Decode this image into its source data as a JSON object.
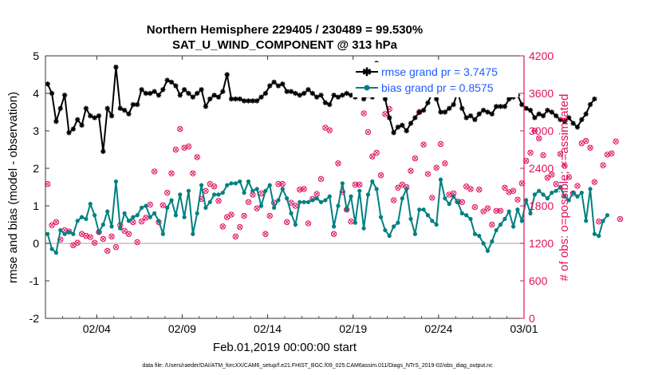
{
  "chart_data": {
    "type": "line",
    "title_line1": "Northern Hemisphere 229405 / 230489 = 99.530%",
    "title_line2": "SAT_U_WIND_COMPONENT @ 313 hPa",
    "xlabel": "Feb.01,2019 00:00:00 start",
    "ylabel_left": "rmse and bias (model - observation)",
    "ylabel_right": "# of obs: o=possible; ×=assimilated",
    "footer": "data file: /Users/raeder/DAI/ATM_forcXX/CAM6_setup/f.e21.FHIST_BGC.f09_025.CAM6assim.011/Diags_NTrS_2019-02/obs_diag_output.nc",
    "xlim": [
      1,
      29
    ],
    "ylim_left": [
      -2,
      5
    ],
    "ylim_right": [
      0,
      4200
    ],
    "x_ticks": [
      {
        "x": 4,
        "label": "02/04"
      },
      {
        "x": 9,
        "label": "02/09"
      },
      {
        "x": 14,
        "label": "02/14"
      },
      {
        "x": 19,
        "label": "02/19"
      },
      {
        "x": 24,
        "label": "02/24"
      },
      {
        "x": 29,
        "label": "03/01"
      }
    ],
    "y_ticks_left": [
      "-2",
      "-1",
      "0",
      "1",
      "2",
      "3",
      "4",
      "5"
    ],
    "y_ticks_right": [
      "0",
      "600",
      "1200",
      "1800",
      "2400",
      "3000",
      "3600",
      "4200"
    ],
    "legend": {
      "rmse": "rmse grand pr = 3.7475",
      "bias": "bias grand pr = 0.8575",
      "position": "top-right"
    },
    "colors": {
      "rmse": "#000000",
      "bias": "#008080",
      "obs": "#e0115f",
      "zero_line": "#c0a8a8"
    },
    "series": [
      {
        "name": "rmse",
        "x0": 1.125,
        "dx": 0.25,
        "values": [
          4.25,
          4.0,
          3.25,
          3.6,
          3.95,
          2.95,
          3.05,
          3.3,
          3.15,
          3.6,
          3.4,
          3.35,
          3.4,
          2.45,
          3.6,
          3.4,
          4.7,
          3.6,
          3.55,
          3.45,
          3.7,
          3.7,
          4.1,
          4.0,
          4.0,
          4.05,
          3.95,
          4.1,
          4.35,
          4.3,
          4.2,
          3.95,
          4.1,
          4.0,
          3.9,
          4.0,
          4.1,
          3.65,
          3.85,
          3.95,
          3.9,
          4.05,
          4.5,
          3.85,
          3.85,
          3.85,
          3.8,
          3.8,
          3.8,
          3.8,
          3.9,
          4.0,
          4.2,
          4.3,
          4.2,
          4.25,
          4.05,
          4.05,
          4.0,
          3.95,
          4.0,
          4.1,
          4.0,
          3.9,
          3.95,
          3.75,
          3.7,
          3.95,
          3.9,
          3.95,
          4.0,
          3.95,
          3.9,
          4.05,
          3.85,
          3.95,
          3.9,
          4.8,
          4.55,
          3.85,
          3.35,
          2.95,
          3.1,
          3.15,
          3.0,
          3.2,
          3.35,
          3.5,
          3.55,
          3.75,
          4.0,
          3.85,
          3.5,
          3.5,
          3.6,
          3.7,
          4.05,
          3.6,
          3.35,
          3.4,
          3.3,
          3.45,
          3.55,
          3.5,
          3.45,
          3.65,
          3.65,
          3.65,
          3.85,
          3.9,
          3.95,
          3.7,
          3.6,
          3.55,
          3.35,
          3.45,
          3.4,
          3.55,
          3.5,
          3.4,
          3.3,
          3.25,
          3.35,
          3.2,
          3.1,
          3.3,
          3.45,
          3.7,
          3.85
        ]
      },
      {
        "name": "bias",
        "x0": 1.125,
        "dx": 0.25,
        "values": [
          0.25,
          -0.15,
          -0.25,
          0.35,
          0.25,
          0.3,
          0.25,
          0.6,
          0.7,
          0.65,
          1.05,
          0.75,
          0.3,
          0.5,
          0.85,
          0.45,
          1.65,
          0.4,
          0.8,
          0.6,
          0.7,
          0.75,
          0.95,
          1.0,
          0.7,
          0.8,
          0.6,
          0.25,
          0.95,
          1.15,
          0.75,
          1.3,
          0.7,
          1.4,
          0.25,
          0.8,
          1.55,
          0.95,
          1.1,
          1.3,
          1.3,
          1.35,
          1.55,
          1.6,
          1.6,
          1.65,
          1.35,
          1.65,
          1.4,
          1.45,
          1.0,
          1.4,
          1.55,
          0.95,
          1.15,
          1.45,
          1.2,
          0.8,
          0.5,
          1.1,
          1.1,
          1.1,
          1.15,
          1.2,
          1.1,
          1.15,
          1.25,
          0.45,
          1.0,
          1.6,
          0.9,
          1.25,
          0.55,
          1.4,
          0.4,
          1.3,
          1.65,
          1.45,
          0.7,
          0.35,
          0.2,
          0.45,
          0.55,
          1.2,
          1.45,
          0.65,
          0.25,
          0.9,
          0.9,
          0.75,
          0.6,
          0.5,
          1.7,
          1.2,
          1.05,
          1.25,
          1.1,
          0.8,
          0.75,
          0.65,
          0.25,
          0.2,
          0.0,
          -0.2,
          0.05,
          0.35,
          0.5,
          0.65,
          0.85,
          0.45,
          0.9,
          0.6,
          1.15,
          0.8,
          1.3,
          1.4,
          1.3,
          1.2,
          1.35,
          1.4,
          1.5,
          1.25,
          1.15,
          1.35,
          1.25,
          1.35,
          0.6,
          1.45,
          0.25,
          0.2,
          0.6,
          0.75
        ]
      },
      {
        "name": "obs_possible",
        "x0": 1.125,
        "dx": 0.25,
        "values": [
          2150,
          1490,
          1540,
          1260,
          1410,
          1390,
          1170,
          1210,
          1350,
          1320,
          1300,
          1210,
          1380,
          1270,
          1080,
          1310,
          1140,
          1490,
          1400,
          1350,
          1540,
          1220,
          1550,
          1610,
          1820,
          2350,
          1540,
          1810,
          2010,
          2320,
          2700,
          3030,
          2730,
          2750,
          2320,
          2580,
          1910,
          2040,
          2150,
          2110,
          1880,
          1470,
          1620,
          1660,
          1310,
          1460,
          1640,
          1860,
          1980,
          1760,
          2000,
          1350,
          1640,
          1850,
          2150,
          2150,
          1540,
          1850,
          1800,
          2060,
          2070,
          1520,
          1910,
          1990,
          2230,
          3050,
          3010,
          1350,
          2480,
          2020,
          1740,
          1550,
          2140,
          2140,
          3280,
          2980,
          2590,
          2650,
          2290,
          3270,
          3350,
          1890,
          2090,
          2140,
          2100,
          2360,
          2560,
          3300,
          2780,
          2310,
          1930,
          2410,
          2790,
          2480,
          1980,
          2000,
          1870,
          1860,
          2110,
          2070,
          1780,
          2060,
          1710,
          1760,
          1500,
          1720,
          1720,
          2090,
          2020,
          2040,
          1900,
          2160,
          2520,
          2650,
          3000,
          2880,
          2610,
          2250,
          2300,
          2150,
          2630,
          2440,
          2260,
          2000,
          2120,
          2800,
          2840,
          2730,
          2180,
          1550,
          2450,
          2620,
          2640,
          2830,
          1590
        ]
      }
    ]
  }
}
